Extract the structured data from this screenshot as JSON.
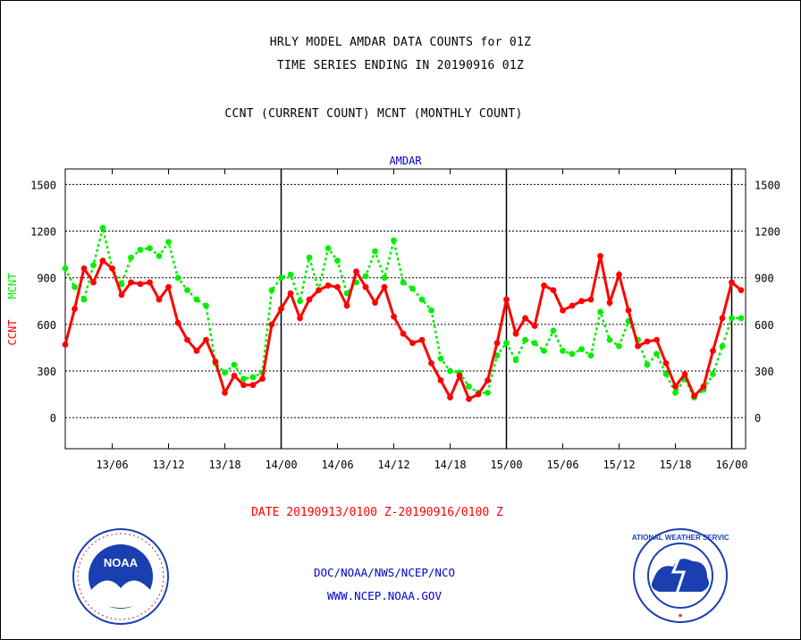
{
  "header": {
    "title_line1": "HRLY MODEL AMDAR DATA COUNTS for 01Z",
    "title_line2": "TIME SERIES ENDING IN 20190916 01Z",
    "subtitle": "CCNT (CURRENT COUNT) MCNT (MONTHLY COUNT)"
  },
  "colors": {
    "ccnt": "#ff0000",
    "mcnt": "#00ee00",
    "footer_text": "#0000cc",
    "noaa_blue": "#1a3fb0",
    "nws_blue": "#1a3fb0"
  },
  "chart_data": {
    "type": "line",
    "title": "AMDAR",
    "ylabel_left": [
      "CCNT",
      "MCNT"
    ],
    "ylim": [
      -200,
      1600
    ],
    "yticks": [
      0,
      300,
      600,
      900,
      1200,
      1500
    ],
    "ytick_labels": [
      "0",
      "300",
      "600",
      "900",
      "1200",
      "1500"
    ],
    "x_tick_labels": [
      "13/06",
      "13/12",
      "13/18",
      "14/00",
      "14/06",
      "14/12",
      "14/18",
      "15/00",
      "15/06",
      "15/12",
      "15/18",
      "16/00"
    ],
    "grid": true,
    "day_boundaries": [
      "14/00",
      "15/00",
      "16/00"
    ],
    "series": [
      {
        "name": "CCNT",
        "color": "#ff0000",
        "values": [
          470,
          700,
          960,
          870,
          1010,
          960,
          790,
          870,
          860,
          870,
          760,
          840,
          610,
          500,
          430,
          500,
          360,
          160,
          270,
          210,
          210,
          250,
          600,
          700,
          800,
          640,
          760,
          820,
          850,
          840,
          720,
          940,
          840,
          740,
          840,
          650,
          540,
          480,
          500,
          350,
          240,
          130,
          270,
          120,
          150,
          240,
          480,
          760,
          540,
          640,
          590,
          850,
          820,
          690,
          720,
          750,
          760,
          1040,
          740,
          920,
          690,
          460,
          490,
          500,
          350,
          200,
          280,
          140,
          200,
          430,
          640,
          870,
          820
        ]
      },
      {
        "name": "MCNT",
        "color": "#00ee00",
        "values": [
          960,
          840,
          760,
          980,
          1220,
          960,
          860,
          1030,
          1080,
          1090,
          1040,
          1130,
          900,
          820,
          760,
          720,
          350,
          290,
          340,
          250,
          260,
          290,
          820,
          900,
          920,
          750,
          1030,
          820,
          1090,
          1010,
          800,
          870,
          910,
          1070,
          900,
          1140,
          870,
          830,
          760,
          690,
          380,
          300,
          290,
          200,
          160,
          160,
          400,
          480,
          370,
          500,
          480,
          430,
          560,
          430,
          410,
          440,
          400,
          680,
          500,
          460,
          620,
          500,
          340,
          410,
          280,
          160,
          250,
          130,
          180,
          280,
          460,
          640,
          640
        ]
      }
    ]
  },
  "footer": {
    "date_range": "DATE 20190913/0100 Z-20190916/0100 Z",
    "org": "DOC/NOAA/NWS/NCEP/NCO",
    "url": "WWW.NCEP.NOAA.GOV"
  },
  "logos": {
    "noaa_text": "NOAA",
    "nws_text": "NATIONAL WEATHER SERVICE"
  }
}
